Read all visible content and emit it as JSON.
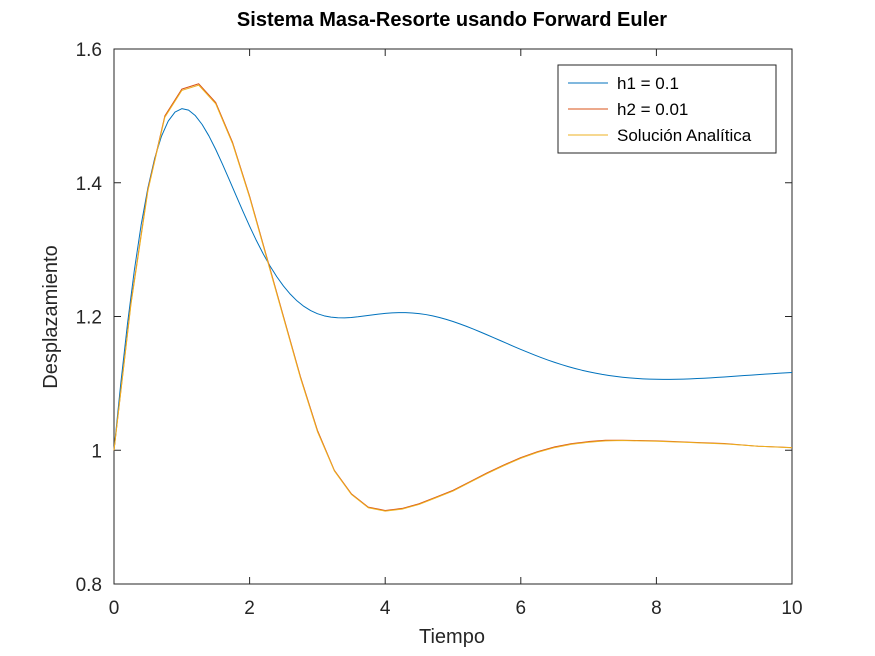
{
  "chart_data": {
    "type": "line",
    "title": "Sistema Masa-Resorte usando Forward Euler",
    "xlabel": "Tiempo",
    "ylabel": "Desplazamiento",
    "xlim": [
      0,
      10
    ],
    "ylim": [
      0.8,
      1.6
    ],
    "xticks": [
      0,
      2,
      4,
      6,
      8,
      10
    ],
    "xtick_labels": [
      "0",
      "2",
      "4",
      "6",
      "8",
      "10"
    ],
    "yticks": [
      0.8,
      1.0,
      1.2,
      1.4,
      1.6
    ],
    "ytick_labels": [
      "0.8",
      "1",
      "1.2",
      "1.4",
      "1.6"
    ],
    "grid": false,
    "legend_position": "top-right",
    "series": [
      {
        "name": "h1 = 0.1",
        "color": "#0072bd",
        "x": [
          0,
          0.1,
          0.2,
          0.3,
          0.4,
          0.5,
          0.6,
          0.7,
          0.8,
          0.9,
          1.0,
          1.1,
          1.2,
          1.3,
          1.4,
          1.5,
          1.6,
          1.7,
          1.8,
          1.9,
          2.0,
          2.1,
          2.2,
          2.3,
          2.4,
          2.5,
          2.6,
          2.7,
          2.8,
          2.9,
          3.0,
          3.1,
          3.2,
          3.3,
          3.4,
          3.5,
          3.6,
          3.7,
          3.8,
          3.9,
          4.0,
          4.1,
          4.2,
          4.3,
          4.4,
          4.5,
          4.6,
          4.7,
          4.8,
          4.9,
          5.0,
          5.1,
          5.2,
          5.3,
          5.4,
          5.5,
          5.6,
          5.7,
          5.8,
          5.9,
          6.0,
          6.1,
          6.2,
          6.3,
          6.4,
          6.5,
          6.6,
          6.7,
          6.8,
          6.9,
          7.0,
          7.1,
          7.2,
          7.3,
          7.4,
          7.5,
          7.6,
          7.7,
          7.8,
          7.9,
          8.0,
          8.1,
          8.2,
          8.3,
          8.4,
          8.5,
          8.6,
          8.7,
          8.8,
          8.9,
          9.0,
          9.1,
          9.2,
          9.3,
          9.4,
          9.5,
          9.6,
          9.7,
          9.8,
          9.9,
          10.0
        ],
        "y": [
          1.0,
          1.1,
          1.19,
          1.269,
          1.3368,
          1.3924,
          1.4365,
          1.4695,
          1.4923,
          1.5057,
          1.5108,
          1.5086,
          1.5003,
          1.4871,
          1.47,
          1.4499,
          1.4278,
          1.4046,
          1.381,
          1.3576,
          1.335,
          1.3136,
          1.2938,
          1.2757,
          1.2596,
          1.2455,
          1.2334,
          1.2233,
          1.2152,
          1.2089,
          1.2042,
          1.201,
          1.199,
          1.1981,
          1.198,
          1.1986,
          1.1996,
          1.2009,
          1.2022,
          1.2035,
          1.2046,
          1.2054,
          1.2058,
          1.2058,
          1.2053,
          1.2043,
          1.2029,
          1.2009,
          1.1985,
          1.1957,
          1.1925,
          1.189,
          1.1852,
          1.1812,
          1.177,
          1.1727,
          1.1683,
          1.1639,
          1.1595,
          1.1551,
          1.1508,
          1.1466,
          1.1425,
          1.1386,
          1.1349,
          1.1314,
          1.1281,
          1.1251,
          1.1223,
          1.1197,
          1.1174,
          1.1153,
          1.1134,
          1.1118,
          1.1104,
          1.1092,
          1.1082,
          1.1074,
          1.1068,
          1.1064,
          1.1061,
          1.106,
          1.106,
          1.1062,
          1.1064,
          1.1068,
          1.1072,
          1.1077,
          1.1083,
          1.1089,
          1.1096,
          1.1103,
          1.111,
          1.1117,
          1.1124,
          1.1131,
          1.1138,
          1.1144,
          1.1151,
          1.1157,
          1.1162
        ]
      },
      {
        "name": "h2 = 0.01",
        "color": "#d95319",
        "x": [
          0,
          0.25,
          0.5,
          0.75,
          1.0,
          1.25,
          1.5,
          1.75,
          2.0,
          2.25,
          2.5,
          2.75,
          3.0,
          3.25,
          3.5,
          3.75,
          4.0,
          4.25,
          4.5,
          4.75,
          5.0,
          5.25,
          5.5,
          5.75,
          6.0,
          6.25,
          6.5,
          6.75,
          7.0,
          7.25,
          7.5,
          7.75,
          8.0,
          8.25,
          8.5,
          8.75,
          9.0,
          9.25,
          9.5,
          9.75,
          10.0
        ],
        "y": [
          1.0,
          1.22,
          1.39,
          1.5,
          1.54,
          1.548,
          1.52,
          1.46,
          1.38,
          1.29,
          1.2,
          1.11,
          1.03,
          0.97,
          0.935,
          0.915,
          0.91,
          0.913,
          0.92,
          0.93,
          0.94,
          0.953,
          0.966,
          0.978,
          0.989,
          0.998,
          1.005,
          1.01,
          1.013,
          1.015,
          1.015,
          1.0145,
          1.014,
          1.013,
          1.012,
          1.011,
          1.01,
          1.008,
          1.006,
          1.005,
          1.004
        ]
      },
      {
        "name": "Solución Analítica",
        "color": "#edb120",
        "x": [
          0,
          0.25,
          0.5,
          0.75,
          1.0,
          1.25,
          1.5,
          1.75,
          2.0,
          2.25,
          2.5,
          2.75,
          3.0,
          3.25,
          3.5,
          3.75,
          4.0,
          4.25,
          4.5,
          4.75,
          5.0,
          5.25,
          5.5,
          5.75,
          6.0,
          6.25,
          6.5,
          6.75,
          7.0,
          7.25,
          7.5,
          7.75,
          8.0,
          8.25,
          8.5,
          8.75,
          9.0,
          9.25,
          9.5,
          9.75,
          10.0
        ],
        "y": [
          1.0,
          1.218,
          1.388,
          1.498,
          1.538,
          1.546,
          1.518,
          1.458,
          1.378,
          1.288,
          1.198,
          1.108,
          1.028,
          0.969,
          0.934,
          0.914,
          0.909,
          0.912,
          0.919,
          0.929,
          0.939,
          0.952,
          0.965,
          0.977,
          0.988,
          0.997,
          1.004,
          1.009,
          1.012,
          1.014,
          1.0145,
          1.014,
          1.0135,
          1.0125,
          1.0115,
          1.0105,
          1.0095,
          1.0078,
          1.006,
          1.0048,
          1.0038
        ]
      }
    ]
  }
}
